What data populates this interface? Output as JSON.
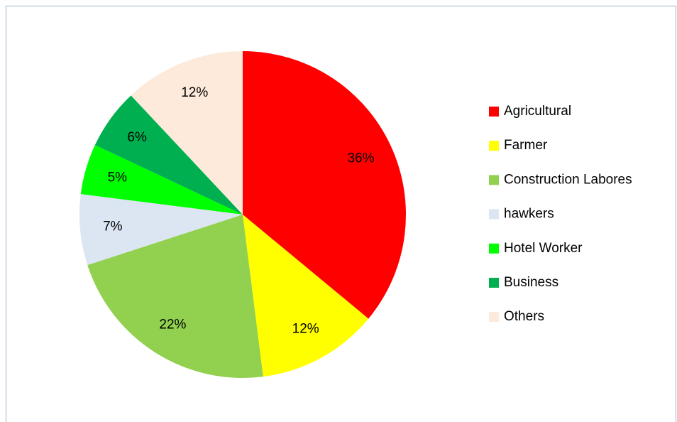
{
  "chart_data": {
    "type": "pie",
    "categories": [
      "Agricultural",
      "Farmer",
      "Construction Labores",
      "hawkers",
      "Hotel Worker",
      "Business",
      "Others"
    ],
    "values": [
      36,
      12,
      22,
      7,
      5,
      6,
      12
    ],
    "value_labels": [
      "36%",
      "12%",
      "22%",
      "7%",
      "5%",
      "6%",
      "12%"
    ],
    "colors": [
      "#ff0000",
      "#ffff00",
      "#92d050",
      "#dce6f2",
      "#00ff00",
      "#00b050",
      "#fdeada"
    ],
    "legend": "right"
  }
}
